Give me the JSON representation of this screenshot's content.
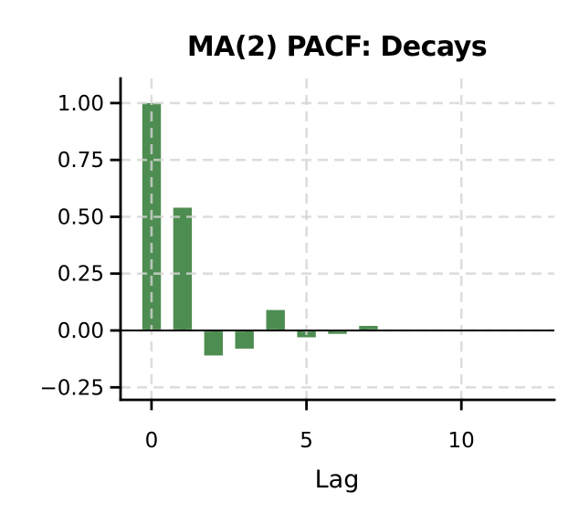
{
  "chart_data": {
    "type": "bar",
    "title": "MA(2) PACF: Decays",
    "xlabel": "Lag",
    "ylabel": "",
    "x": [
      0,
      1,
      2,
      3,
      4,
      5,
      6,
      7,
      8,
      9,
      10,
      11,
      12
    ],
    "values": [
      1.0,
      0.54,
      -0.11,
      -0.08,
      0.09,
      -0.03,
      -0.015,
      0.02,
      0,
      0,
      0,
      0,
      0
    ],
    "xlim": [
      -1,
      13
    ],
    "ylim": [
      -0.305,
      1.108
    ],
    "xticks": [
      0,
      5,
      10
    ],
    "xtick_labels": [
      "0",
      "5",
      "10"
    ],
    "yticks": [
      1.0,
      0.75,
      0.5,
      0.25,
      0.0,
      -0.25
    ],
    "ytick_labels": [
      "1.00",
      "0.75",
      "0.50",
      "0.25",
      "0.00",
      "−0.25"
    ],
    "bar_width_fraction": 0.6,
    "grid": {
      "visible": true,
      "style": "dashed",
      "above_bars": true
    },
    "zero_line": true,
    "legend": "none",
    "colors": {
      "bar": "#4e8d51",
      "grid": "#d4d4d4",
      "axis": "#000000",
      "text": "#000000",
      "background": "#ffffff"
    }
  }
}
